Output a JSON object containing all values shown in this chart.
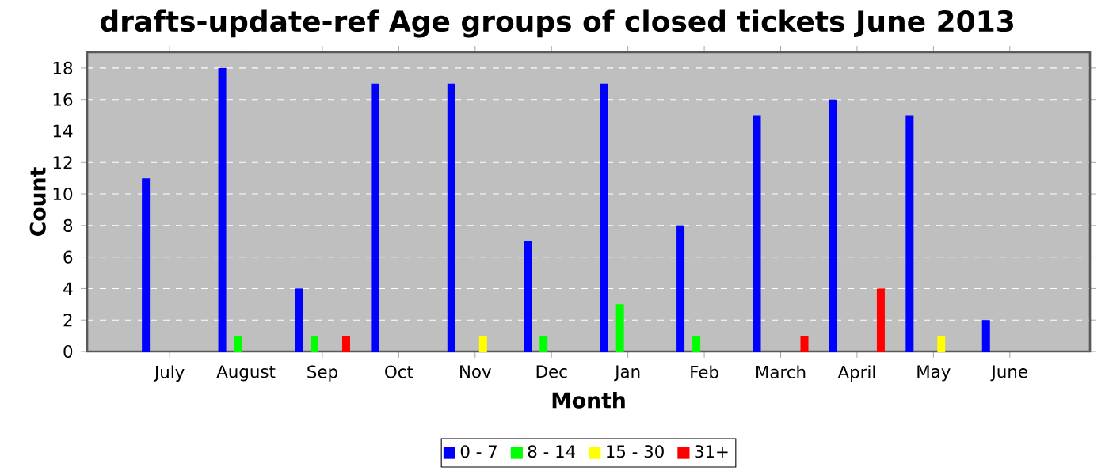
{
  "chart_data": {
    "type": "bar",
    "title": "drafts-update-ref Age groups of closed tickets June 2013",
    "xlabel": "Month",
    "ylabel": "Count",
    "categories": [
      "July",
      "August",
      "Sep",
      "Oct",
      "Nov",
      "Dec",
      "Jan",
      "Feb",
      "March",
      "April",
      "May",
      "June"
    ],
    "series": [
      {
        "name": "0 - 7",
        "color": "#0000ff",
        "values": [
          11,
          18,
          4,
          17,
          17,
          7,
          17,
          8,
          15,
          16,
          15,
          2
        ]
      },
      {
        "name": "8 - 14",
        "color": "#00ff00",
        "values": [
          0,
          1,
          1,
          0,
          0,
          1,
          3,
          1,
          0,
          0,
          0,
          0
        ]
      },
      {
        "name": "15 - 30",
        "color": "#ffff00",
        "values": [
          0,
          0,
          0,
          0,
          1,
          0,
          0,
          0,
          0,
          0,
          1,
          0
        ]
      },
      {
        "name": "31+",
        "color": "#ff0000",
        "values": [
          0,
          0,
          1,
          0,
          0,
          0,
          0,
          0,
          1,
          4,
          0,
          0
        ]
      }
    ],
    "ylim": [
      0,
      19
    ],
    "yticks": [
      0,
      2,
      4,
      6,
      8,
      10,
      12,
      14,
      16,
      18
    ],
    "grid": "y",
    "legend": "bottom"
  }
}
